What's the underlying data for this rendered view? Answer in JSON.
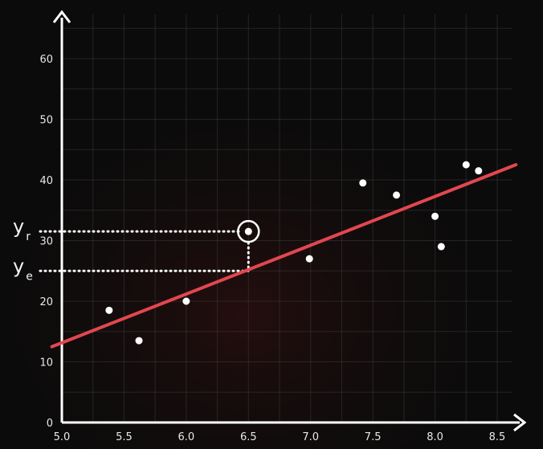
{
  "chart_data": {
    "type": "scatter",
    "title": "",
    "xlabel": "",
    "ylabel": "",
    "xlim": [
      5.0,
      8.5
    ],
    "ylim": [
      0,
      60
    ],
    "grid": true,
    "x_ticks": [
      "5.0",
      "5.5",
      "6.0",
      "6.5",
      "7.0",
      "7.5",
      "8.0",
      "8.5"
    ],
    "y_ticks": [
      "0",
      "10",
      "20",
      "30",
      "40",
      "50",
      "60"
    ],
    "points": [
      {
        "x": 5.38,
        "y": 18.5
      },
      {
        "x": 5.62,
        "y": 13.5
      },
      {
        "x": 6.0,
        "y": 20.0
      },
      {
        "x": 6.5,
        "y": 31.5
      },
      {
        "x": 6.99,
        "y": 27.0
      },
      {
        "x": 7.42,
        "y": 39.5
      },
      {
        "x": 7.69,
        "y": 37.5
      },
      {
        "x": 8.0,
        "y": 34.0
      },
      {
        "x": 8.05,
        "y": 29.0
      },
      {
        "x": 8.25,
        "y": 42.5
      },
      {
        "x": 8.35,
        "y": 41.5
      }
    ],
    "regression_line": {
      "x1": 4.92,
      "y1": 12.5,
      "x2": 8.65,
      "y2": 42.5
    },
    "highlight": {
      "x": 6.5,
      "y_actual": 31.5,
      "y_estimated": 25.0,
      "label_actual_main": "y",
      "label_actual_sub": "r",
      "label_estimated_main": "y",
      "label_estimated_sub": "e"
    },
    "colors": {
      "background": "#0b0b0b",
      "grid": "#3a3a3a",
      "axis": "#ffffff",
      "points": "#ffffff",
      "line": "#e2474f"
    }
  }
}
